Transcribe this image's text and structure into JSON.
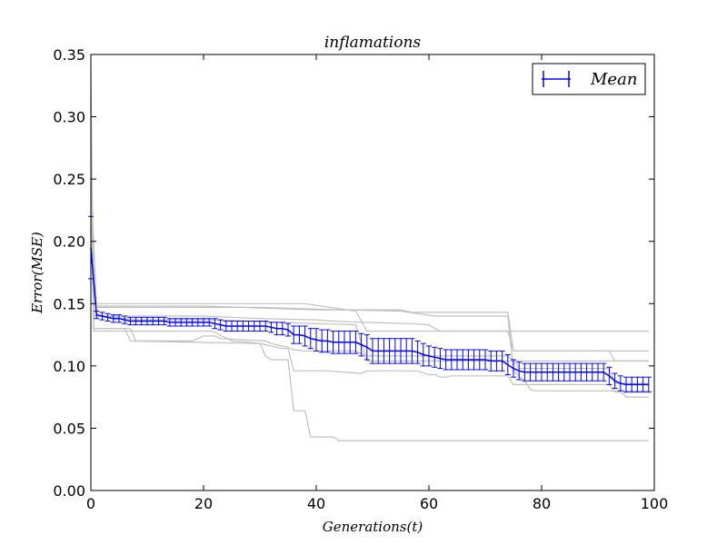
{
  "chart_data": {
    "type": "line",
    "title": "inflamations",
    "xlabel": "Generations(t)",
    "ylabel": "Error(MSE)",
    "xlim": [
      0,
      100
    ],
    "ylim": [
      0,
      0.35
    ],
    "xticks": [
      0,
      20,
      40,
      60,
      80,
      100
    ],
    "xtick_labels": [
      "0",
      "20",
      "40",
      "60",
      "80",
      "100"
    ],
    "yticks": [
      0,
      0.05,
      0.1,
      0.15,
      0.2,
      0.25,
      0.3,
      0.35
    ],
    "ytick_labels": [
      "0.00",
      "0.05",
      "0.10",
      "0.15",
      "0.20",
      "0.25",
      "0.30",
      "0.35"
    ],
    "grid": false,
    "legend": {
      "position": "top-right",
      "entries": [
        "Mean"
      ]
    },
    "colors": {
      "mean": "#0000ff",
      "runs": "#c0c0c0"
    },
    "series": [
      {
        "name": "Mean",
        "style": "errorbar",
        "points": [
          [
            0,
            0.195,
            0.025
          ],
          [
            1,
            0.141,
            0.003
          ],
          [
            2,
            0.14,
            0.003
          ],
          [
            3,
            0.139,
            0.003
          ],
          [
            4,
            0.138,
            0.003
          ],
          [
            5,
            0.138,
            0.003
          ],
          [
            6,
            0.137,
            0.003
          ],
          [
            7,
            0.136,
            0.003
          ],
          [
            8,
            0.136,
            0.003
          ],
          [
            9,
            0.136,
            0.003
          ],
          [
            10,
            0.136,
            0.003
          ],
          [
            11,
            0.136,
            0.003
          ],
          [
            12,
            0.136,
            0.003
          ],
          [
            13,
            0.136,
            0.003
          ],
          [
            14,
            0.135,
            0.003
          ],
          [
            15,
            0.135,
            0.003
          ],
          [
            16,
            0.135,
            0.003
          ],
          [
            17,
            0.135,
            0.003
          ],
          [
            18,
            0.135,
            0.003
          ],
          [
            19,
            0.135,
            0.003
          ],
          [
            20,
            0.135,
            0.003
          ],
          [
            21,
            0.135,
            0.003
          ],
          [
            22,
            0.134,
            0.004
          ],
          [
            23,
            0.133,
            0.004
          ],
          [
            24,
            0.132,
            0.004
          ],
          [
            25,
            0.132,
            0.004
          ],
          [
            26,
            0.132,
            0.004
          ],
          [
            27,
            0.132,
            0.004
          ],
          [
            28,
            0.132,
            0.004
          ],
          [
            29,
            0.132,
            0.004
          ],
          [
            30,
            0.132,
            0.004
          ],
          [
            31,
            0.132,
            0.004
          ],
          [
            32,
            0.131,
            0.004
          ],
          [
            33,
            0.13,
            0.005
          ],
          [
            34,
            0.13,
            0.005
          ],
          [
            35,
            0.129,
            0.005
          ],
          [
            36,
            0.125,
            0.007
          ],
          [
            37,
            0.125,
            0.007
          ],
          [
            38,
            0.124,
            0.008
          ],
          [
            39,
            0.122,
            0.008
          ],
          [
            40,
            0.121,
            0.009
          ],
          [
            41,
            0.12,
            0.009
          ],
          [
            42,
            0.12,
            0.009
          ],
          [
            43,
            0.119,
            0.009
          ],
          [
            44,
            0.119,
            0.009
          ],
          [
            45,
            0.119,
            0.009
          ],
          [
            46,
            0.119,
            0.009
          ],
          [
            47,
            0.119,
            0.009
          ],
          [
            48,
            0.117,
            0.009
          ],
          [
            49,
            0.115,
            0.01
          ],
          [
            50,
            0.112,
            0.01
          ],
          [
            51,
            0.112,
            0.01
          ],
          [
            52,
            0.112,
            0.01
          ],
          [
            53,
            0.112,
            0.01
          ],
          [
            54,
            0.112,
            0.01
          ],
          [
            55,
            0.112,
            0.01
          ],
          [
            56,
            0.112,
            0.01
          ],
          [
            57,
            0.112,
            0.01
          ],
          [
            58,
            0.111,
            0.009
          ],
          [
            59,
            0.109,
            0.009
          ],
          [
            60,
            0.108,
            0.008
          ],
          [
            61,
            0.107,
            0.008
          ],
          [
            62,
            0.106,
            0.008
          ],
          [
            63,
            0.105,
            0.008
          ],
          [
            64,
            0.105,
            0.008
          ],
          [
            65,
            0.105,
            0.008
          ],
          [
            66,
            0.105,
            0.008
          ],
          [
            67,
            0.105,
            0.008
          ],
          [
            68,
            0.105,
            0.008
          ],
          [
            69,
            0.105,
            0.008
          ],
          [
            70,
            0.105,
            0.008
          ],
          [
            71,
            0.104,
            0.008
          ],
          [
            72,
            0.104,
            0.008
          ],
          [
            73,
            0.104,
            0.008
          ],
          [
            74,
            0.101,
            0.008
          ],
          [
            75,
            0.098,
            0.007
          ],
          [
            76,
            0.096,
            0.007
          ],
          [
            77,
            0.095,
            0.007
          ],
          [
            78,
            0.095,
            0.007
          ],
          [
            79,
            0.095,
            0.007
          ],
          [
            80,
            0.095,
            0.007
          ],
          [
            81,
            0.095,
            0.007
          ],
          [
            82,
            0.095,
            0.007
          ],
          [
            83,
            0.095,
            0.007
          ],
          [
            84,
            0.095,
            0.007
          ],
          [
            85,
            0.095,
            0.007
          ],
          [
            86,
            0.095,
            0.007
          ],
          [
            87,
            0.095,
            0.007
          ],
          [
            88,
            0.095,
            0.007
          ],
          [
            89,
            0.095,
            0.007
          ],
          [
            90,
            0.095,
            0.007
          ],
          [
            91,
            0.095,
            0.007
          ],
          [
            92,
            0.092,
            0.007
          ],
          [
            93,
            0.088,
            0.006
          ],
          [
            94,
            0.086,
            0.006
          ],
          [
            95,
            0.085,
            0.006
          ],
          [
            96,
            0.085,
            0.006
          ],
          [
            97,
            0.085,
            0.006
          ],
          [
            98,
            0.085,
            0.006
          ],
          [
            99,
            0.085,
            0.006
          ]
        ]
      }
    ],
    "runs": [
      {
        "points": [
          [
            0,
            0.34
          ],
          [
            0.5,
            0.14
          ],
          [
            3,
            0.14
          ],
          [
            8,
            0.137
          ],
          [
            22,
            0.137
          ],
          [
            33,
            0.135
          ],
          [
            47,
            0.133
          ],
          [
            49,
            0.104
          ],
          [
            92,
            0.104
          ],
          [
            99,
            0.104
          ]
        ]
      },
      {
        "points": [
          [
            0,
            0.28
          ],
          [
            0.5,
            0.13
          ],
          [
            6,
            0.13
          ],
          [
            7,
            0.12
          ],
          [
            30,
            0.118
          ],
          [
            31,
            0.117
          ],
          [
            32,
            0.116
          ],
          [
            33,
            0.115
          ],
          [
            34,
            0.114
          ],
          [
            35,
            0.114
          ],
          [
            36,
            0.096
          ],
          [
            37,
            0.096
          ],
          [
            38,
            0.096
          ],
          [
            40,
            0.096
          ],
          [
            41,
            0.096
          ],
          [
            42,
            0.096
          ],
          [
            48,
            0.094
          ],
          [
            49,
            0.096
          ],
          [
            58,
            0.096
          ],
          [
            60,
            0.093
          ],
          [
            61,
            0.093
          ],
          [
            62,
            0.091
          ],
          [
            63,
            0.091
          ],
          [
            64,
            0.092
          ],
          [
            74,
            0.092
          ],
          [
            75,
            0.085
          ],
          [
            77,
            0.085
          ],
          [
            78,
            0.085
          ],
          [
            92,
            0.085
          ],
          [
            93,
            0.079
          ],
          [
            94,
            0.079
          ],
          [
            95,
            0.075
          ],
          [
            99,
            0.075
          ]
        ]
      },
      {
        "points": [
          [
            0,
            0.3
          ],
          [
            0.5,
            0.128
          ],
          [
            21,
            0.128
          ],
          [
            22,
            0.127
          ],
          [
            25,
            0.12
          ],
          [
            28,
            0.119
          ],
          [
            30,
            0.118
          ],
          [
            31,
            0.108
          ],
          [
            32,
            0.105
          ],
          [
            35,
            0.105
          ],
          [
            36,
            0.064
          ],
          [
            37,
            0.064
          ],
          [
            38,
            0.064
          ],
          [
            39,
            0.043
          ],
          [
            43,
            0.043
          ],
          [
            44,
            0.04
          ],
          [
            99,
            0.04
          ]
        ]
      },
      {
        "points": [
          [
            0,
            0.2
          ],
          [
            1,
            0.15
          ],
          [
            38,
            0.15
          ],
          [
            47,
            0.144
          ],
          [
            49,
            0.128
          ],
          [
            99,
            0.128
          ]
        ]
      },
      {
        "points": [
          [
            0,
            0.31
          ],
          [
            0.5,
            0.13
          ],
          [
            7,
            0.13
          ],
          [
            8,
            0.12
          ],
          [
            18,
            0.12
          ],
          [
            20,
            0.124
          ],
          [
            22,
            0.124
          ],
          [
            23,
            0.122
          ],
          [
            31,
            0.12
          ],
          [
            32,
            0.118
          ],
          [
            35,
            0.115
          ],
          [
            36,
            0.113
          ],
          [
            38,
            0.112
          ],
          [
            47,
            0.112
          ],
          [
            49,
            0.108
          ],
          [
            58,
            0.108
          ],
          [
            74,
            0.108
          ],
          [
            75,
            0.104
          ],
          [
            76,
            0.098
          ],
          [
            78,
            0.098
          ],
          [
            92,
            0.098
          ],
          [
            93,
            0.086
          ],
          [
            99,
            0.086
          ]
        ]
      },
      {
        "points": [
          [
            0,
            0.22
          ],
          [
            0.5,
            0.14
          ],
          [
            20,
            0.14
          ],
          [
            30,
            0.138
          ],
          [
            40,
            0.137
          ],
          [
            43,
            0.136
          ],
          [
            49,
            0.135
          ],
          [
            56,
            0.134
          ],
          [
            57,
            0.134
          ],
          [
            60,
            0.133
          ],
          [
            61,
            0.13
          ],
          [
            62,
            0.128
          ],
          [
            63,
            0.128
          ],
          [
            74,
            0.128
          ],
          [
            75,
            0.112
          ],
          [
            92,
            0.112
          ],
          [
            93,
            0.104
          ],
          [
            99,
            0.104
          ]
        ]
      },
      {
        "points": [
          [
            0,
            0.25
          ],
          [
            1,
            0.148
          ],
          [
            20,
            0.148
          ],
          [
            40,
            0.145
          ],
          [
            55,
            0.145
          ],
          [
            57,
            0.143
          ],
          [
            74,
            0.143
          ],
          [
            75,
            0.112
          ],
          [
            93,
            0.112
          ],
          [
            99,
            0.112
          ]
        ]
      },
      {
        "points": [
          [
            0,
            0.24
          ],
          [
            1,
            0.147
          ],
          [
            30,
            0.147
          ],
          [
            44,
            0.145
          ],
          [
            55,
            0.144
          ],
          [
            61,
            0.14
          ],
          [
            74,
            0.14
          ],
          [
            75,
            0.096
          ],
          [
            76,
            0.092
          ],
          [
            77,
            0.088
          ],
          [
            78,
            0.081
          ],
          [
            79,
            0.08
          ],
          [
            92,
            0.08
          ],
          [
            99,
            0.08
          ]
        ]
      }
    ]
  }
}
